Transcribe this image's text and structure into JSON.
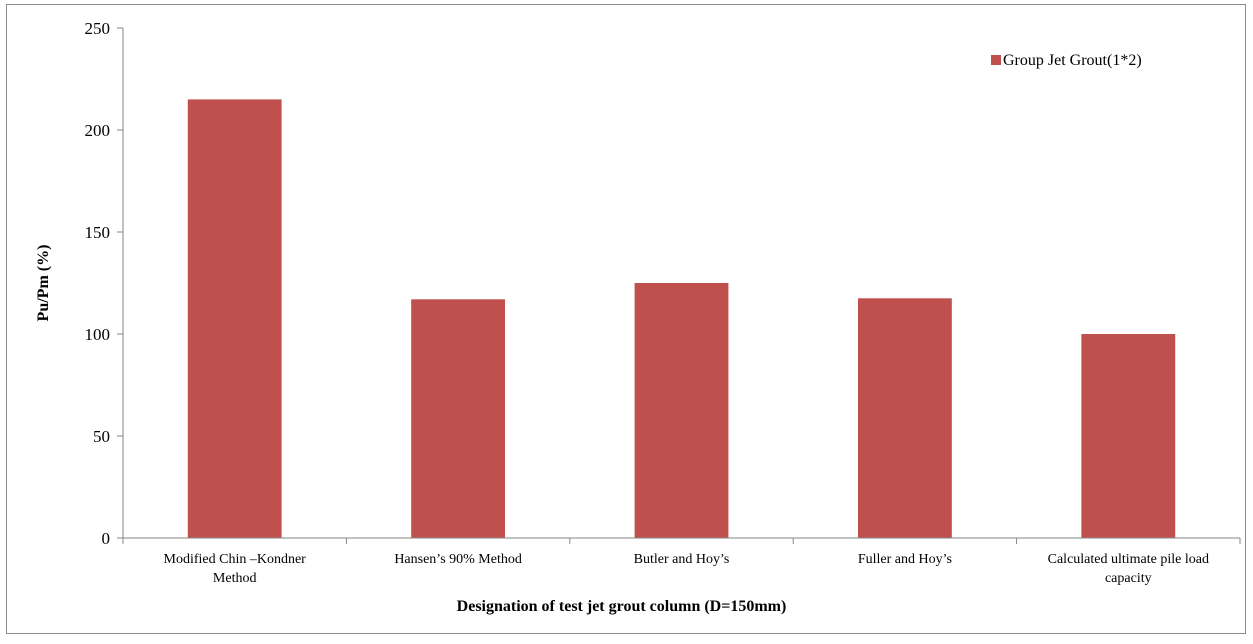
{
  "chart_data": {
    "type": "bar",
    "categories": [
      [
        "Modified Chin –Kondner",
        "Method"
      ],
      [
        "Hansen’s 90% Method"
      ],
      [
        "Butler and Hoy’s"
      ],
      [
        "Fuller and Hoy’s"
      ],
      [
        "Calculated ultimate pile load",
        "capacity"
      ]
    ],
    "series": [
      {
        "name": "Group Jet Grout(1*2)",
        "values": [
          215,
          117,
          125,
          117.5,
          100
        ]
      }
    ],
    "xlabel": "Designation of test jet grout column (D=150mm)",
    "ylabel": "Pu/Pm (%)",
    "ylim": [
      0,
      250
    ],
    "yticks": [
      0,
      50,
      100,
      150,
      200,
      250
    ],
    "grid": false,
    "legend": "top-right",
    "colors": {
      "bar": "#c0504d",
      "axis": "#868686"
    }
  }
}
